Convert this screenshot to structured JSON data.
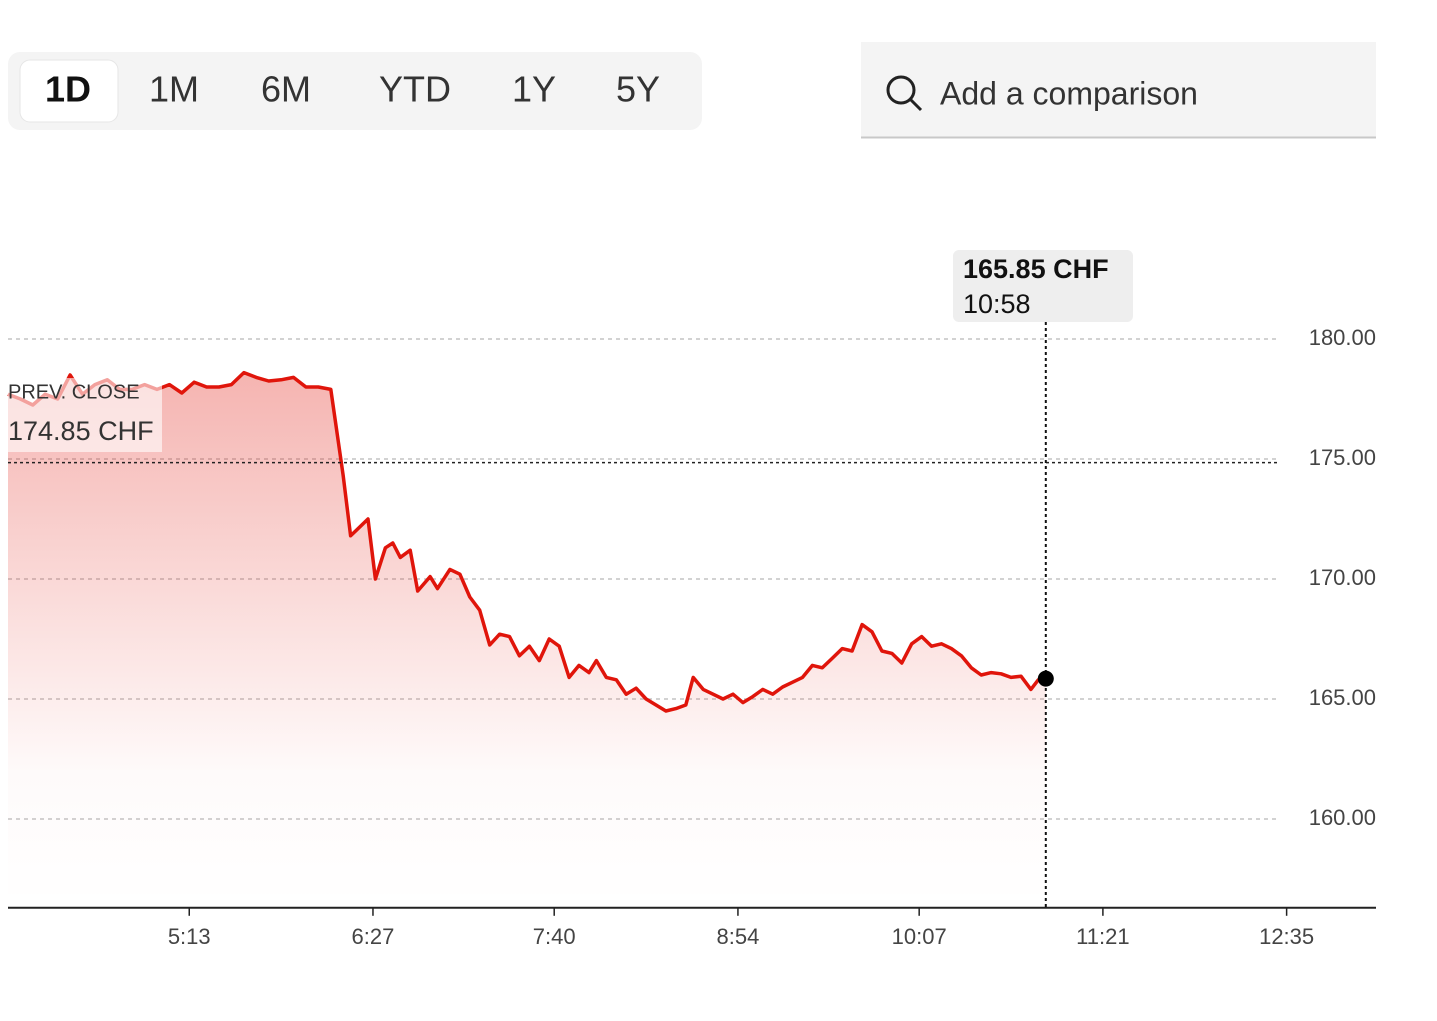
{
  "controls": {
    "ranges": [
      "1D",
      "1M",
      "6M",
      "YTD",
      "1Y",
      "5Y"
    ],
    "search_placeholder": "Add a comparison"
  },
  "chart_data": {
    "type": "line",
    "color": "#e0150b",
    "x": [
      240,
      245,
      250,
      255,
      260,
      265,
      270,
      275,
      280,
      285,
      290,
      295,
      300,
      305,
      310,
      315,
      320,
      325,
      330,
      335,
      340,
      345,
      350,
      355,
      360,
      365,
      370,
      375,
      378,
      380,
      385,
      388,
      392,
      395,
      398,
      402,
      405,
      410,
      413,
      418,
      422,
      426,
      430,
      434,
      438,
      442,
      446,
      450,
      454,
      458,
      462,
      466,
      470,
      474,
      477,
      481,
      485,
      489,
      493,
      497,
      501,
      505,
      509,
      513,
      516,
      520,
      524,
      528,
      532,
      536,
      540,
      544,
      548,
      552,
      556,
      560,
      564,
      568,
      572,
      576,
      580,
      584,
      588,
      592,
      596,
      600,
      604,
      608,
      612,
      616,
      620,
      624,
      628,
      632,
      636,
      640,
      644,
      648,
      652,
      655,
      658
    ],
    "values": [
      177.7,
      177.5,
      177.25,
      177.7,
      177.5,
      178.5,
      177.7,
      178.1,
      178.3,
      177.9,
      177.9,
      178.1,
      177.9,
      178.1,
      177.75,
      178.2,
      178.0,
      178.0,
      178.1,
      178.6,
      178.4,
      178.25,
      178.3,
      178.4,
      178.0,
      178.0,
      177.9,
      174.3,
      171.8,
      172.0,
      172.5,
      170.0,
      171.3,
      171.5,
      170.9,
      171.2,
      169.5,
      170.1,
      169.6,
      170.4,
      170.2,
      169.25,
      168.7,
      167.25,
      167.7,
      167.6,
      166.8,
      167.2,
      166.6,
      167.5,
      167.2,
      165.9,
      166.4,
      166.1,
      166.6,
      165.9,
      165.8,
      165.2,
      165.45,
      165.0,
      164.75,
      164.5,
      164.6,
      164.75,
      165.9,
      165.4,
      165.2,
      165.0,
      165.2,
      164.85,
      165.1,
      165.4,
      165.2,
      165.5,
      165.7,
      165.9,
      166.4,
      166.3,
      166.7,
      167.1,
      167.0,
      168.1,
      167.8,
      167.0,
      166.9,
      166.5,
      167.3,
      167.6,
      167.2,
      167.3,
      167.1,
      166.8,
      166.3,
      166.0,
      166.1,
      166.05,
      165.9,
      165.95,
      165.4,
      165.8,
      165.85
    ],
    "xlim": [
      240,
      791
    ],
    "xticks": [
      {
        "value": 313,
        "label": "5:13"
      },
      {
        "value": 387,
        "label": "6:27"
      },
      {
        "value": 460,
        "label": "7:40"
      },
      {
        "value": 534,
        "label": "8:54"
      },
      {
        "value": 607,
        "label": "10:07"
      },
      {
        "value": 681,
        "label": "11:21"
      },
      {
        "value": 755,
        "label": "12:35"
      }
    ],
    "ylim": [
      156.3,
      183.7
    ],
    "yticks": [
      {
        "value": 160,
        "label": "160.00"
      },
      {
        "value": 165,
        "label": "165.00"
      },
      {
        "value": 170,
        "label": "170.00"
      },
      {
        "value": 175,
        "label": "175.00"
      },
      {
        "value": 180,
        "label": "180.00"
      }
    ],
    "grid": true,
    "prev_close": {
      "label": "PREV. CLOSE",
      "value": 174.85,
      "value_label": "174.85 CHF"
    },
    "tooltip": {
      "price": "165.85 CHF",
      "time": "10:58"
    }
  }
}
